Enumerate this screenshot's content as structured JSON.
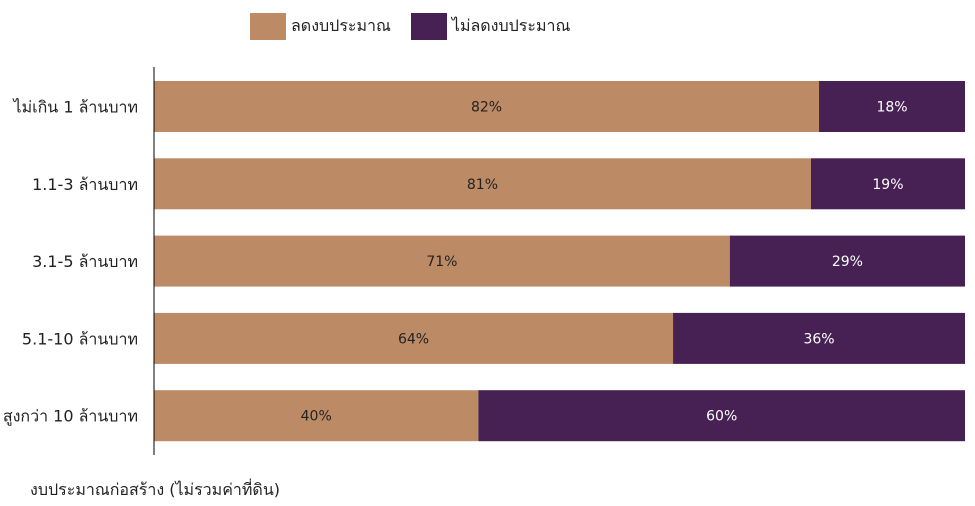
{
  "chart_data": {
    "type": "bar",
    "orientation": "horizontal",
    "stacked": true,
    "categories": [
      "ไม่เกิน 1 ล้านบาท",
      "1.1-3 ล้านบาท",
      "3.1-5 ล้านบาท",
      "5.1-10 ล้านบาท",
      "สูงกว่า 10 ล้านบาท"
    ],
    "series": [
      {
        "name": "ลดงบประมาณ",
        "values": [
          82,
          81,
          71,
          64,
          40
        ],
        "color": "#BC8B66"
      },
      {
        "name": "ไม่ลดงบประมาณ",
        "values": [
          18,
          19,
          29,
          36,
          60
        ],
        "color": "#472154"
      }
    ],
    "value_format": "{v}%",
    "xlim": [
      0,
      100
    ],
    "xlabel": "",
    "ylabel": "งบประมาณก่อสร้าง (ไม่รวมค่าที่ดิน)",
    "legend": "top",
    "grid": false
  }
}
